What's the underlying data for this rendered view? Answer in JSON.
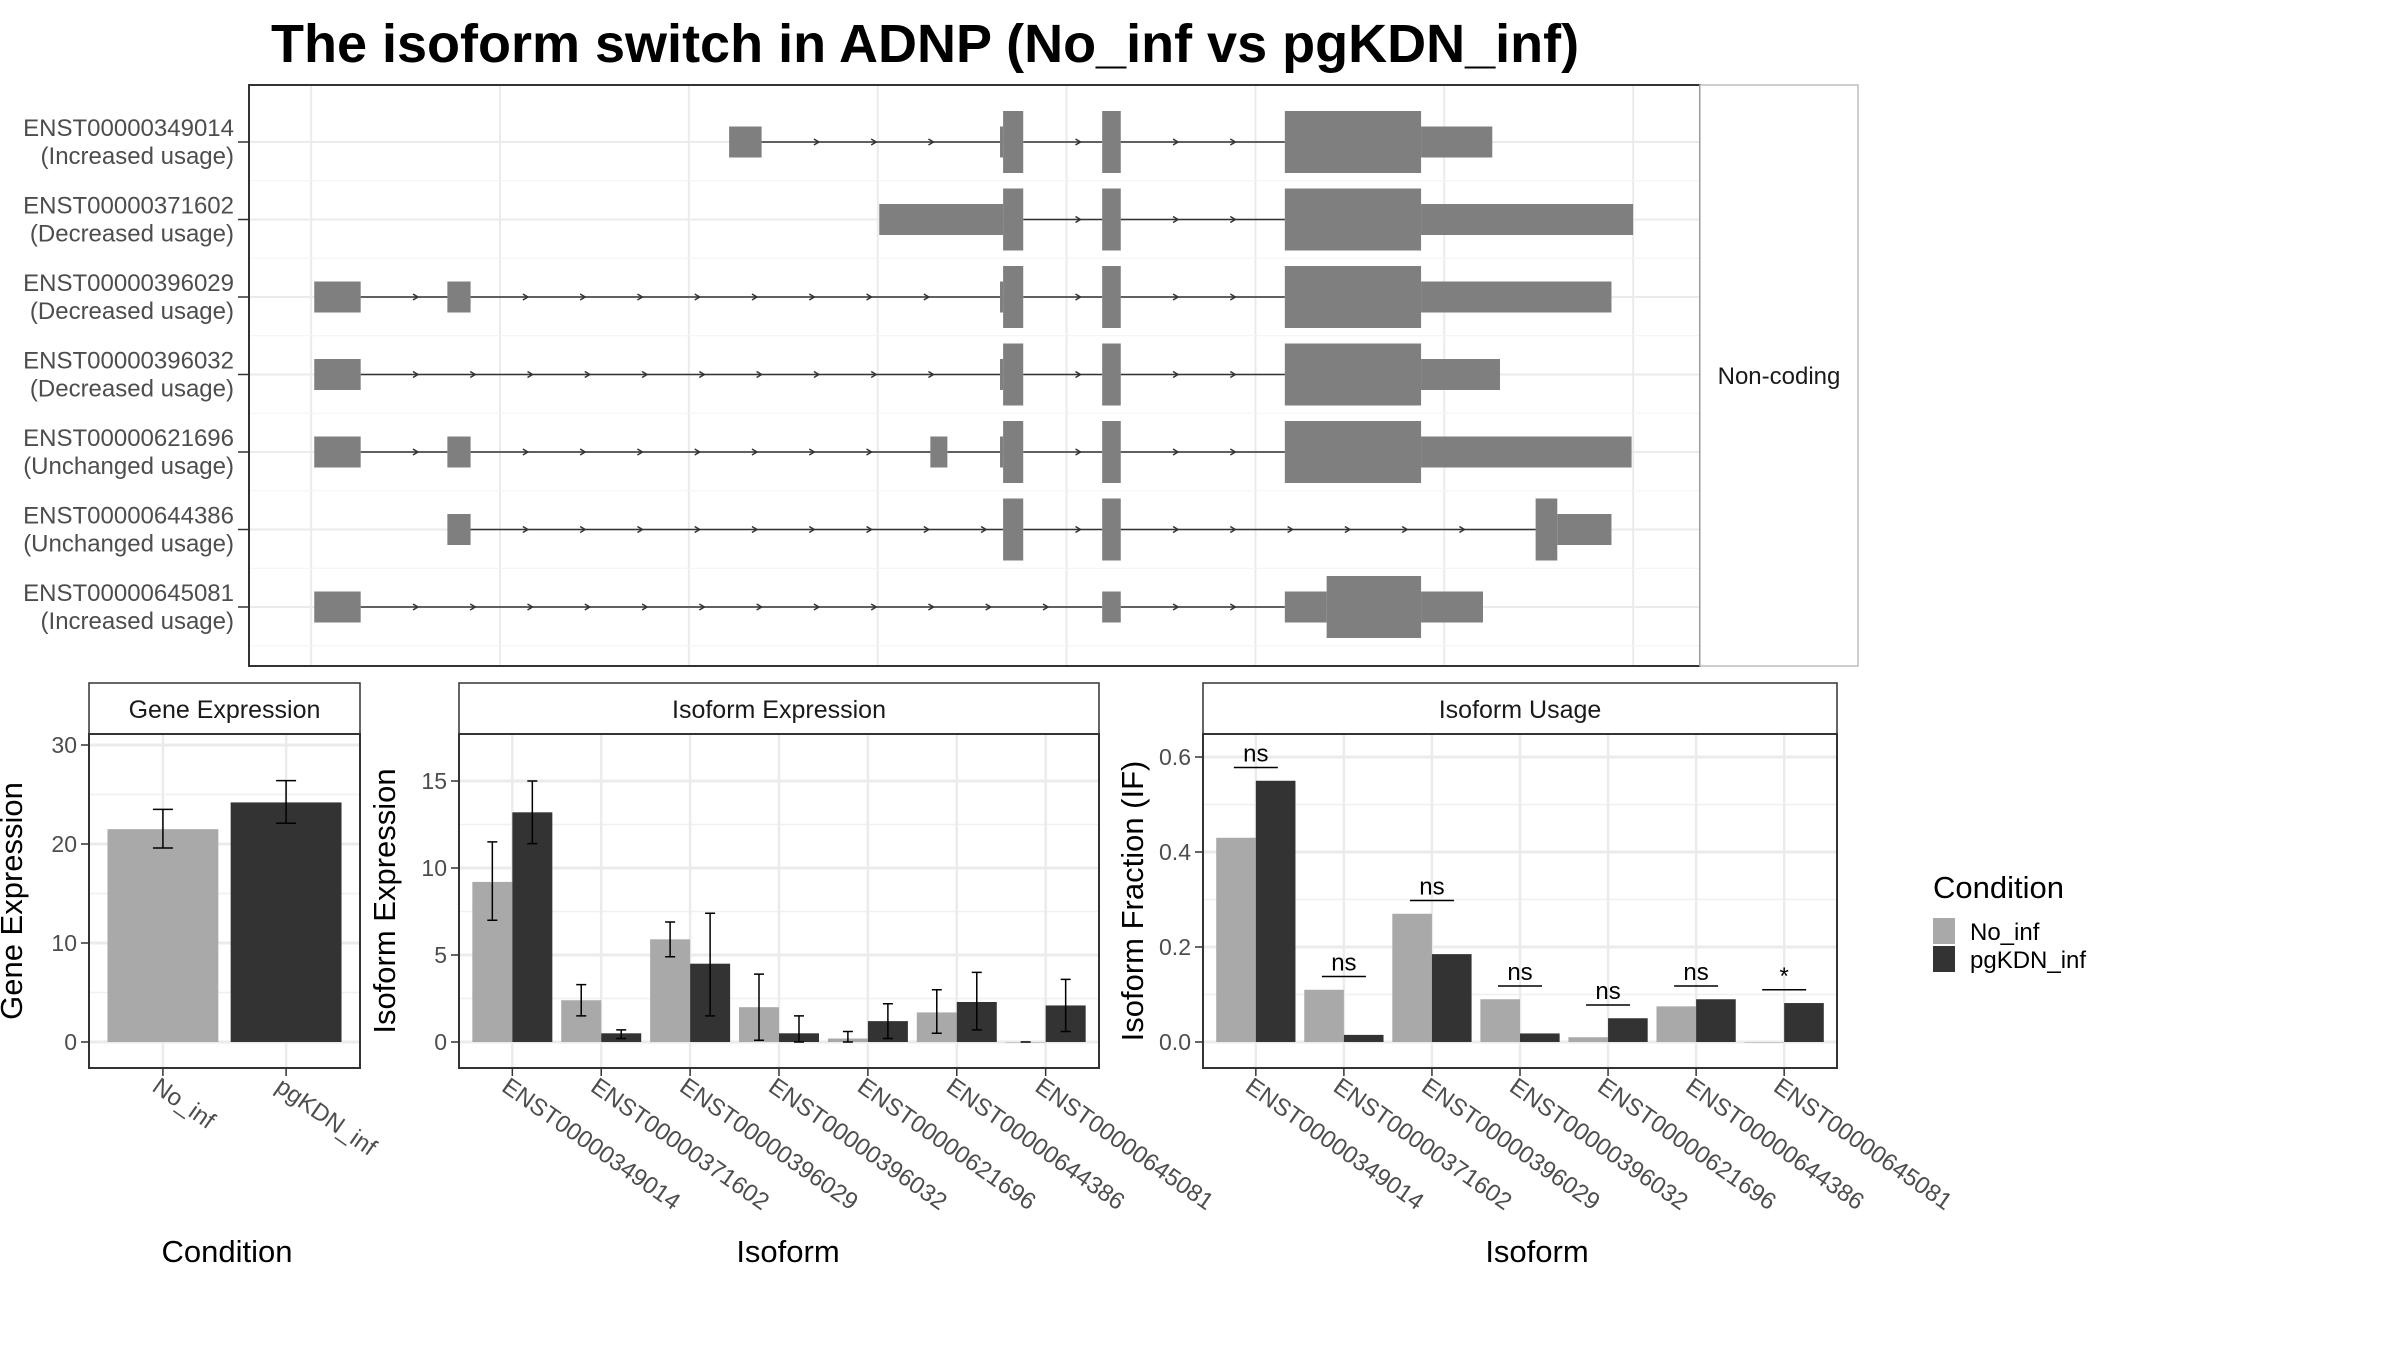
{
  "title": "The isoform switch in ADNP (No_inf vs pgKDN_inf)",
  "structure": {
    "strip_label": "Non-coding",
    "coordinate_note": "relative genomic position units",
    "transcripts": [
      {
        "id": "ENST00000349014",
        "usage": "(Increased usage)",
        "exons": [
          [
            471,
            492,
            "utr"
          ],
          [
            646,
            648,
            "utr"
          ],
          [
            648,
            661,
            "cds"
          ],
          [
            712,
            724,
            "cds"
          ],
          [
            830,
            918,
            "cds"
          ],
          [
            918,
            964,
            "utr"
          ]
        ]
      },
      {
        "id": "ENST00000371602",
        "usage": "(Decreased usage)",
        "exons": [
          [
            568,
            648,
            "utr"
          ],
          [
            648,
            661,
            "cds"
          ],
          [
            712,
            724,
            "cds"
          ],
          [
            830,
            918,
            "cds"
          ],
          [
            918,
            1055,
            "utr"
          ]
        ]
      },
      {
        "id": "ENST00000396029",
        "usage": "(Decreased usage)",
        "exons": [
          [
            203,
            233,
            "utr"
          ],
          [
            289,
            304,
            "utr"
          ],
          [
            646,
            648,
            "utr"
          ],
          [
            648,
            661,
            "cds"
          ],
          [
            712,
            724,
            "cds"
          ],
          [
            830,
            918,
            "cds"
          ],
          [
            918,
            1041,
            "utr"
          ]
        ]
      },
      {
        "id": "ENST00000396032",
        "usage": "(Decreased usage)",
        "exons": [
          [
            203,
            233,
            "utr"
          ],
          [
            646,
            648,
            "utr"
          ],
          [
            648,
            661,
            "cds"
          ],
          [
            712,
            724,
            "cds"
          ],
          [
            830,
            918,
            "cds"
          ],
          [
            918,
            969,
            "utr"
          ]
        ]
      },
      {
        "id": "ENST00000621696",
        "usage": "(Unchanged usage)",
        "exons": [
          [
            203,
            233,
            "utr"
          ],
          [
            289,
            304,
            "utr"
          ],
          [
            601,
            612,
            "utr"
          ],
          [
            646,
            648,
            "utr"
          ],
          [
            648,
            661,
            "cds"
          ],
          [
            712,
            724,
            "cds"
          ],
          [
            830,
            918,
            "cds"
          ],
          [
            918,
            1054,
            "utr"
          ]
        ]
      },
      {
        "id": "ENST00000644386",
        "usage": "(Unchanged usage)",
        "exons": [
          [
            289,
            304,
            "utr"
          ],
          [
            648,
            661,
            "cds"
          ],
          [
            712,
            724,
            "cds"
          ],
          [
            992,
            1006,
            "cds"
          ],
          [
            1006,
            1041,
            "utr"
          ]
        ]
      },
      {
        "id": "ENST00000645081",
        "usage": "(Increased usage)",
        "exons": [
          [
            203,
            233,
            "utr"
          ],
          [
            712,
            724,
            "utr"
          ],
          [
            830,
            857,
            "utr"
          ],
          [
            857,
            918,
            "cds"
          ],
          [
            918,
            958,
            "utr"
          ]
        ]
      }
    ]
  },
  "legend": {
    "title": "Condition",
    "entries": [
      {
        "label": "No_inf",
        "color": "#a9a9a9"
      },
      {
        "label": "pgKDN_inf",
        "color": "#333333"
      }
    ]
  },
  "chart_data": [
    {
      "type": "bar",
      "title": "Gene Expression",
      "xlabel": "Condition",
      "ylabel": "Gene Expression",
      "categories": [
        "No_inf",
        "pgKDN_inf"
      ],
      "yticks": [
        0,
        10,
        20,
        30
      ],
      "ylim": [
        0,
        32
      ],
      "series": [
        {
          "name": "No_inf",
          "values": [
            21.5,
            null
          ],
          "err_low": [
            19.6,
            null
          ],
          "err_high": [
            23.5,
            null
          ]
        },
        {
          "name": "pgKDN_inf",
          "values": [
            null,
            24.2
          ],
          "err_low": [
            null,
            22.1
          ],
          "err_high": [
            null,
            26.4
          ]
        }
      ]
    },
    {
      "type": "bar",
      "title": "Isoform Expression",
      "xlabel": "Isoform",
      "ylabel": "Isoform Expression",
      "categories": [
        "ENST00000349014",
        "ENST00000371602",
        "ENST00000396029",
        "ENST00000396032",
        "ENST00000621696",
        "ENST00000644386",
        "ENST00000645081"
      ],
      "yticks": [
        0,
        5,
        10,
        15
      ],
      "ylim": [
        0,
        18
      ],
      "series": [
        {
          "name": "No_inf",
          "values": [
            9.2,
            2.4,
            5.9,
            2.0,
            0.2,
            1.7,
            0.0
          ],
          "err_low": [
            7.0,
            1.5,
            4.9,
            0.1,
            0.0,
            0.5,
            0.0
          ],
          "err_high": [
            11.5,
            3.3,
            6.9,
            3.9,
            0.6,
            3.0,
            0.0
          ]
        },
        {
          "name": "pgKDN_inf",
          "values": [
            13.2,
            0.5,
            4.5,
            0.5,
            1.2,
            2.3,
            2.1
          ],
          "err_low": [
            11.4,
            0.2,
            1.5,
            0.0,
            0.2,
            0.7,
            0.6
          ],
          "err_high": [
            15.0,
            0.7,
            7.4,
            1.5,
            2.2,
            4.0,
            3.6
          ]
        }
      ]
    },
    {
      "type": "bar",
      "title": "Isoform Usage",
      "xlabel": "Isoform",
      "ylabel": "Isoform Fraction (IF)",
      "categories": [
        "ENST00000349014",
        "ENST00000371602",
        "ENST00000396029",
        "ENST00000396032",
        "ENST00000621696",
        "ENST00000644386",
        "ENST00000645081"
      ],
      "yticks": [
        0.0,
        0.2,
        0.4,
        0.6
      ],
      "ytick_labels": [
        "0.0",
        "0.2",
        "0.4",
        "0.6"
      ],
      "ylim": [
        0,
        0.66
      ],
      "series": [
        {
          "name": "No_inf",
          "values": [
            0.43,
            0.11,
            0.27,
            0.09,
            0.01,
            0.075,
            0.0
          ]
        },
        {
          "name": "pgKDN_inf",
          "values": [
            0.55,
            0.015,
            0.185,
            0.018,
            0.05,
            0.09,
            0.082
          ]
        }
      ],
      "significance": [
        "ns",
        "ns",
        "ns",
        "ns",
        "ns",
        "ns",
        "*"
      ]
    }
  ]
}
